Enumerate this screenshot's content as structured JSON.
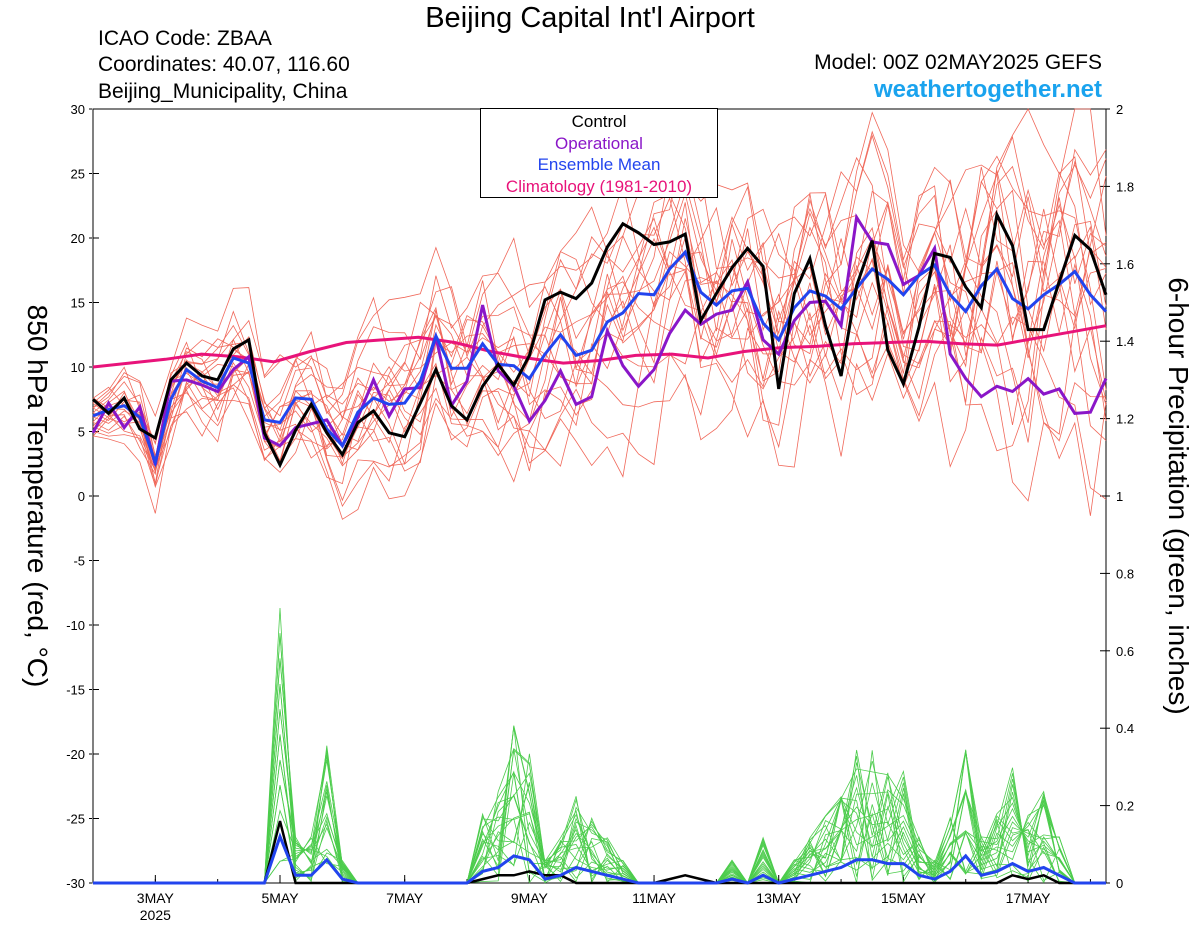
{
  "header": {
    "title": "Beijing Capital Int'l Airport",
    "icao": "ICAO Code: ZBAA",
    "coords": "Coordinates: 40.07, 116.60",
    "region": "Beijing_Municipality, China",
    "model": "Model: 00Z 02MAY2025 GEFS",
    "site": "weathertogether.net"
  },
  "colors": {
    "member": "#f0685a",
    "precip": "#4ccc4c",
    "control": "#000000",
    "operational": "#8a16c8",
    "mean": "#2244ee",
    "climatology": "#e8137a",
    "site": "#1aa3ee"
  },
  "legend": {
    "control": "Control",
    "operational": "Operational",
    "mean": "Ensemble Mean",
    "climatology": "Climatology (1981-2010)"
  },
  "chart_data": {
    "type": "line",
    "xlabel": "",
    "ylabel_left": "850 hPa Temperature (red, °C)",
    "ylabel_right": "6-hour Precipitation (green, inches)",
    "ylim_left": [
      -30,
      30
    ],
    "ylim_right": [
      0,
      2
    ],
    "x_start": "02MAY2025 00Z",
    "x_step_hours": 6,
    "xlim_days": [
      0,
      16.25
    ],
    "left_ticks": [
      "-30",
      "-25",
      "-20",
      "-15",
      "-10",
      "-5",
      "0",
      "5",
      "10",
      "15",
      "20",
      "25",
      "30"
    ],
    "right_ticks": [
      "0",
      "0.2",
      "0.4",
      "0.6",
      "0.8",
      "1",
      "1.2",
      "1.4",
      "1.6",
      "1.8",
      "2"
    ],
    "x_ticks": [
      {
        "label": "3MAY",
        "sub": "2025",
        "day": 1
      },
      {
        "label": "5MAY",
        "sub": "",
        "day": 3
      },
      {
        "label": "7MAY",
        "sub": "",
        "day": 5
      },
      {
        "label": "9MAY",
        "sub": "",
        "day": 7
      },
      {
        "label": "11MAY",
        "sub": "",
        "day": 9
      },
      {
        "label": "13MAY",
        "sub": "",
        "day": 11
      },
      {
        "label": "15MAY",
        "sub": "",
        "day": 13
      },
      {
        "label": "17MAY",
        "sub": "",
        "day": 15
      }
    ],
    "series": [
      {
        "name": "Control",
        "axis": "temp",
        "values": [
          7.5,
          6.4,
          7.6,
          5.2,
          4.5,
          9.0,
          10.3,
          9.3,
          9.0,
          11.4,
          12.1,
          4.9,
          2.4,
          5.1,
          7.1,
          4.9,
          3.2,
          5.7,
          6.6,
          4.9,
          4.6,
          7.2,
          9.8,
          7.0,
          5.9,
          8.5,
          10.2,
          8.6,
          10.9,
          15.2,
          15.8,
          15.3,
          16.5,
          19.3,
          21.1,
          20.4,
          19.5,
          19.7,
          20.3,
          13.6,
          15.7,
          17.7,
          19.2,
          17.8,
          8.3,
          15.7,
          18.4,
          13.2,
          9.3,
          16.3,
          19.8,
          11.3,
          8.7,
          13.1,
          18.8,
          18.5,
          16.2,
          14.6,
          21.8,
          19.4,
          12.9,
          12.9,
          16.6,
          20.2,
          19.1,
          15.6
        ]
      },
      {
        "name": "Operational",
        "axis": "temp",
        "values": [
          4.9,
          7.2,
          5.3,
          6.9,
          2.4,
          8.9,
          9.0,
          8.6,
          8.1,
          9.8,
          10.8,
          4.5,
          3.9,
          5.3,
          5.6,
          5.9,
          3.9,
          6.1,
          9.0,
          6.2,
          8.3,
          8.4,
          12.3,
          7.0,
          8.9,
          14.8,
          9.7,
          8.5,
          5.8,
          7.4,
          9.7,
          7.1,
          7.7,
          12.8,
          10.1,
          8.5,
          9.8,
          12.6,
          14.4,
          13.3,
          14.1,
          14.4,
          16.6,
          12.1,
          11.0,
          13.6,
          15.0,
          15.1,
          13.2,
          21.6,
          19.7,
          19.5,
          16.4,
          17.1,
          19.2,
          11.0,
          9.1,
          7.7,
          8.5,
          8.1,
          9.1,
          7.9,
          8.3,
          6.4,
          6.5,
          9.1
        ]
      },
      {
        "name": "Ensemble Mean",
        "axis": "temp",
        "values": [
          6.2,
          6.7,
          7.0,
          6.1,
          2.6,
          7.5,
          9.8,
          8.9,
          8.4,
          10.7,
          10.3,
          5.9,
          5.7,
          7.6,
          7.5,
          5.2,
          3.9,
          6.5,
          7.6,
          7.1,
          7.2,
          8.9,
          12.4,
          9.9,
          9.9,
          11.8,
          10.2,
          10.1,
          9.1,
          11.0,
          12.5,
          10.9,
          11.3,
          13.5,
          14.2,
          15.7,
          15.6,
          17.6,
          18.9,
          15.8,
          14.8,
          15.9,
          16.1,
          13.4,
          12.1,
          14.6,
          15.9,
          15.5,
          14.5,
          16.1,
          17.6,
          16.8,
          15.6,
          17.1,
          17.9,
          15.6,
          14.3,
          16.3,
          17.6,
          15.3,
          14.5,
          15.6,
          16.4,
          17.4,
          15.6,
          14.3
        ]
      },
      {
        "name": "Climatology (1981-2010)",
        "axis": "temp",
        "values": [
          10.0,
          10.3,
          10.6,
          11.0,
          10.8,
          10.4,
          11.2,
          11.9,
          12.1,
          12.3,
          11.9,
          11.2,
          10.7,
          10.3,
          10.5,
          10.9,
          11.0,
          10.7,
          11.2,
          11.5,
          11.6,
          11.8,
          11.9,
          12.0,
          11.8,
          11.7,
          12.2,
          12.7,
          13.2
        ]
      },
      {
        "name": "Ensemble Mean precip",
        "axis": "precip",
        "values": [
          0,
          0,
          0,
          0,
          0,
          0,
          0,
          0,
          0,
          0,
          0,
          0,
          0.12,
          0.02,
          0.02,
          0.06,
          0.01,
          0,
          0,
          0,
          0,
          0,
          0,
          0,
          0,
          0.03,
          0.04,
          0.07,
          0.06,
          0.01,
          0.02,
          0.04,
          0.03,
          0.02,
          0.01,
          0,
          0,
          0,
          0,
          0,
          0,
          0.01,
          0,
          0.02,
          0,
          0.01,
          0.02,
          0.03,
          0.04,
          0.06,
          0.06,
          0.05,
          0.05,
          0.02,
          0.01,
          0.03,
          0.07,
          0.02,
          0.03,
          0.05,
          0.03,
          0.04,
          0.02,
          0,
          0,
          0
        ]
      },
      {
        "name": "Control precip",
        "axis": "precip",
        "values": [
          0,
          0,
          0,
          0,
          0,
          0,
          0,
          0,
          0,
          0,
          0,
          0,
          0.16,
          0,
          0,
          0,
          0,
          0,
          0,
          0,
          0,
          0,
          0,
          0,
          0,
          0.01,
          0.02,
          0.02,
          0.03,
          0.02,
          0.02,
          0,
          0,
          0,
          0,
          0,
          0,
          0.01,
          0.02,
          0.01,
          0,
          0,
          0,
          0,
          0,
          0,
          0,
          0,
          0,
          0,
          0,
          0,
          0,
          0,
          0,
          0,
          0,
          0,
          0,
          0.02,
          0.01,
          0.02,
          0,
          0,
          0,
          0
        ]
      }
    ]
  }
}
